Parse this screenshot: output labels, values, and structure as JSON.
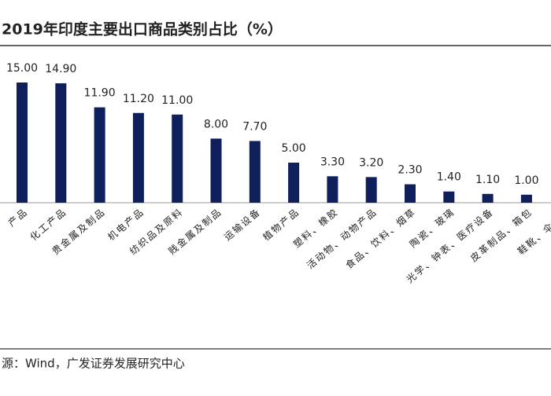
{
  "chart_data": {
    "type": "bar",
    "title": "2019年印度主要出口商品类别占比（%）",
    "categories": [
      "产品",
      "化工产品",
      "贵金属及制品",
      "机电产品",
      "纺织品及原料",
      "贱金属及制品",
      "运输设备",
      "植物产品",
      "塑料、橡胶",
      "活动物、动物产品",
      "食品、饮料、烟草",
      "陶瓷、玻璃",
      "光学、钟表、医疗设备",
      "皮革制品、箱包",
      "鞋靴、伞等轻"
    ],
    "values": [
      15.0,
      14.9,
      11.9,
      11.2,
      11.0,
      8.0,
      7.7,
      5.0,
      3.3,
      3.2,
      2.3,
      1.4,
      1.1,
      1.0,
      null
    ],
    "value_labels": [
      "15.00",
      "14.90",
      "11.90",
      "11.20",
      "11.00",
      "8.00",
      "7.70",
      "5.00",
      "3.30",
      "3.20",
      "2.30",
      "1.40",
      "1.10",
      "1.00",
      null
    ],
    "color": "#0e1f5b",
    "source": "源：Wind，广发证券发展研究中心"
  }
}
